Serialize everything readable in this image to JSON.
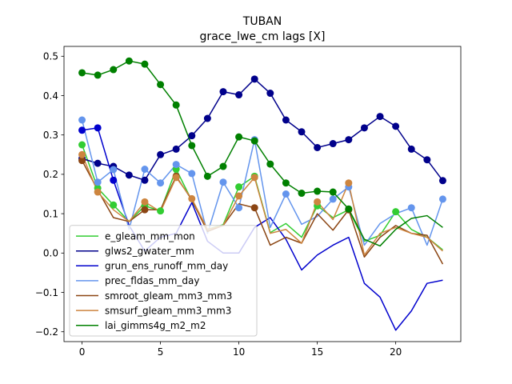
{
  "chart_data": {
    "type": "line",
    "title": "TUBAN",
    "subtitle": "grace_lwe_cm lags [X]",
    "xlabel": "",
    "ylabel": "",
    "xlim": [
      -1.15,
      24.15
    ],
    "ylim": [
      -0.225,
      0.525
    ],
    "xticks": [
      0,
      5,
      10,
      15,
      20
    ],
    "yticks": [
      -0.2,
      -0.1,
      0.0,
      0.1,
      0.2,
      0.3,
      0.4,
      0.5
    ],
    "ytick_labels": [
      "−0.2",
      "−0.1",
      "0.0",
      "0.1",
      "0.2",
      "0.3",
      "0.4",
      "0.5"
    ],
    "grid": false,
    "legend_position": "lower-left",
    "series": [
      {
        "name": "e_gleam_mm_mon",
        "color": "#32cd32",
        "x": [
          0,
          1,
          2,
          3,
          4,
          5,
          6,
          7,
          8,
          9,
          10,
          11,
          12,
          13,
          14,
          15,
          16,
          17,
          18,
          19,
          20,
          21,
          22,
          23
        ],
        "y": [
          0.275,
          0.165,
          0.122,
          0.08,
          0.12,
          0.107,
          0.213,
          0.133,
          0.06,
          0.072,
          0.168,
          0.195,
          0.052,
          0.075,
          0.04,
          0.12,
          0.09,
          0.11,
          0.03,
          0.045,
          0.105,
          0.06,
          0.04,
          0.008
        ],
        "markers": [
          0,
          1,
          2,
          4,
          5,
          6,
          10,
          11,
          15,
          17,
          20
        ]
      },
      {
        "name": "glws2_gwater_mm",
        "color": "#00008b",
        "x": [
          0,
          1,
          2,
          3,
          4,
          5,
          6,
          7,
          8,
          9,
          10,
          11,
          12,
          13,
          14,
          15,
          16,
          17,
          18,
          19,
          20,
          21,
          22,
          23
        ],
        "y": [
          0.24,
          0.228,
          0.22,
          0.198,
          0.185,
          0.25,
          0.264,
          0.298,
          0.342,
          0.41,
          0.402,
          0.442,
          0.406,
          0.338,
          0.308,
          0.268,
          0.278,
          0.288,
          0.318,
          0.347,
          0.322,
          0.264,
          0.237,
          0.184
        ],
        "markers": [
          0,
          1,
          2,
          3,
          4,
          5,
          6,
          7,
          8,
          9,
          10,
          11,
          12,
          13,
          14,
          15,
          16,
          17,
          18,
          19,
          20,
          21,
          22,
          23
        ]
      },
      {
        "name": "grun_ens_runoff_mm_day",
        "color": "#0000cd",
        "x": [
          0,
          1,
          2,
          3,
          4,
          5,
          6,
          7,
          8,
          9,
          10,
          11,
          12,
          13,
          14,
          15,
          16,
          17,
          18,
          19,
          20,
          21,
          22,
          23
        ],
        "y": [
          0.312,
          0.318,
          0.185,
          0.07,
          0.005,
          0.04,
          0.05,
          0.128,
          0.03,
          0.0,
          0.0,
          0.065,
          0.09,
          0.035,
          -0.043,
          -0.005,
          0.02,
          0.04,
          -0.077,
          -0.112,
          -0.196,
          -0.147,
          -0.077,
          -0.069
        ],
        "markers": [
          0,
          1,
          2
        ]
      },
      {
        "name": "prec_fldas_mm_day",
        "color": "#6495ed",
        "x": [
          0,
          1,
          2,
          3,
          4,
          5,
          6,
          7,
          8,
          9,
          10,
          11,
          12,
          13,
          14,
          15,
          16,
          17,
          18,
          19,
          20,
          21,
          22,
          23
        ],
        "y": [
          0.338,
          0.18,
          0.212,
          0.06,
          0.213,
          0.178,
          0.225,
          0.202,
          0.05,
          0.18,
          0.115,
          0.288,
          0.065,
          0.15,
          0.073,
          0.093,
          0.137,
          0.168,
          0.02,
          0.075,
          0.1,
          0.115,
          0.02,
          0.137
        ],
        "markers": [
          0,
          1,
          2,
          4,
          5,
          6,
          7,
          9,
          10,
          11,
          13,
          16,
          17,
          21,
          23
        ]
      },
      {
        "name": "smroot_gleam_mm3_mm3",
        "color": "#8b4513",
        "x": [
          0,
          1,
          2,
          3,
          4,
          5,
          6,
          7,
          8,
          9,
          10,
          11,
          12,
          13,
          14,
          15,
          16,
          17,
          18,
          19,
          20,
          21,
          22,
          23
        ],
        "y": [
          0.235,
          0.16,
          0.09,
          0.08,
          0.11,
          0.11,
          0.195,
          0.135,
          0.055,
          0.07,
          0.125,
          0.115,
          0.02,
          0.04,
          0.025,
          0.1,
          0.058,
          0.11,
          -0.01,
          0.04,
          0.07,
          0.05,
          0.045,
          -0.028
        ],
        "markers": [
          0,
          4,
          6,
          11,
          17
        ]
      },
      {
        "name": "smsurf_gleam_mm3_mm3",
        "color": "#cd853f",
        "x": [
          0,
          1,
          2,
          3,
          4,
          5,
          6,
          7,
          8,
          9,
          10,
          11,
          12,
          13,
          14,
          15,
          16,
          17,
          18,
          19,
          20,
          21,
          22,
          23
        ],
        "y": [
          0.25,
          0.155,
          0.11,
          0.08,
          0.13,
          0.105,
          0.192,
          0.138,
          0.06,
          0.07,
          0.145,
          0.192,
          0.05,
          0.06,
          0.025,
          0.13,
          0.085,
          0.178,
          -0.005,
          0.05,
          0.065,
          0.05,
          0.04,
          0.005
        ],
        "markers": [
          0,
          1,
          4,
          6,
          7,
          10,
          11,
          15,
          17
        ]
      },
      {
        "name": "lai_gimms4g_m2_m2",
        "color": "#008000",
        "x": [
          0,
          1,
          2,
          3,
          4,
          5,
          6,
          7,
          8,
          9,
          10,
          11,
          12,
          13,
          14,
          15,
          16,
          17,
          18,
          19,
          20,
          21,
          22,
          23
        ],
        "y": [
          0.458,
          0.452,
          0.466,
          0.488,
          0.48,
          0.428,
          0.376,
          0.273,
          0.195,
          0.22,
          0.295,
          0.285,
          0.226,
          0.178,
          0.152,
          0.157,
          0.155,
          0.112,
          0.035,
          0.018,
          0.06,
          0.088,
          0.095,
          0.065
        ],
        "markers": [
          0,
          1,
          2,
          3,
          4,
          5,
          6,
          7,
          8,
          9,
          10,
          11,
          12,
          13,
          14,
          15,
          16,
          17
        ]
      }
    ]
  }
}
